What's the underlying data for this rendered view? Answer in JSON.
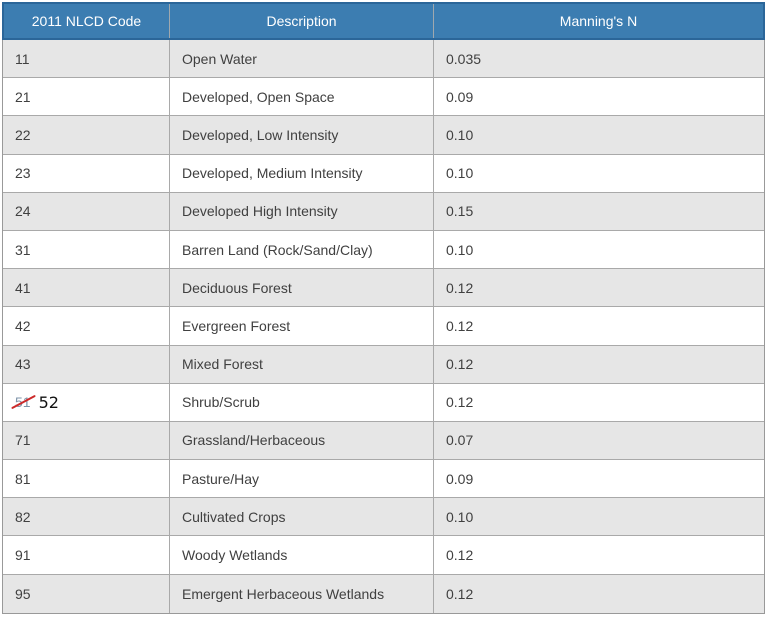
{
  "table": {
    "headers": [
      "2011 NLCD Code",
      "Description",
      "Manning's N"
    ],
    "rows": [
      {
        "code": "11",
        "description": "Open Water",
        "manning_n": "0.035"
      },
      {
        "code": "21",
        "description": "Developed, Open Space",
        "manning_n": "0.09"
      },
      {
        "code": "22",
        "description": "Developed, Low Intensity",
        "manning_n": "0.10"
      },
      {
        "code": "23",
        "description": "Developed, Medium Intensity",
        "manning_n": "0.10"
      },
      {
        "code": "24",
        "description": "Developed High Intensity",
        "manning_n": "0.15"
      },
      {
        "code": "31",
        "description": "Barren Land (Rock/Sand/Clay)",
        "manning_n": "0.10"
      },
      {
        "code": "41",
        "description": "Deciduous Forest",
        "manning_n": "0.12"
      },
      {
        "code": "42",
        "description": "Evergreen Forest",
        "manning_n": "0.12"
      },
      {
        "code": "43",
        "description": "Mixed Forest",
        "manning_n": "0.12"
      },
      {
        "code": "51",
        "description": "Shrub/Scrub",
        "manning_n": "0.12",
        "annotation": {
          "strikethrough": true,
          "replacement": "52"
        }
      },
      {
        "code": "71",
        "description": "Grassland/Herbaceous",
        "manning_n": "0.07"
      },
      {
        "code": "81",
        "description": "Pasture/Hay",
        "manning_n": "0.09"
      },
      {
        "code": "82",
        "description": "Cultivated Crops",
        "manning_n": "0.10"
      },
      {
        "code": "91",
        "description": "Woody Wetlands",
        "manning_n": "0.12"
      },
      {
        "code": "95",
        "description": "Emergent Herbaceous Wetlands",
        "manning_n": "0.12"
      }
    ]
  },
  "colors": {
    "header_bg": "#3C7DB1",
    "header_border": "#2B6699",
    "header_text": "#FFFFFF",
    "row_shaded_bg": "#E6E6E6",
    "row_plain_bg": "#FFFFFF",
    "grid_line": "#A9A9A9",
    "outer_border": "#999999",
    "body_text": "#404040",
    "struck_code_text": "#7E93A8",
    "strike_mark": "#CC2929",
    "revision_text": "#111111"
  }
}
